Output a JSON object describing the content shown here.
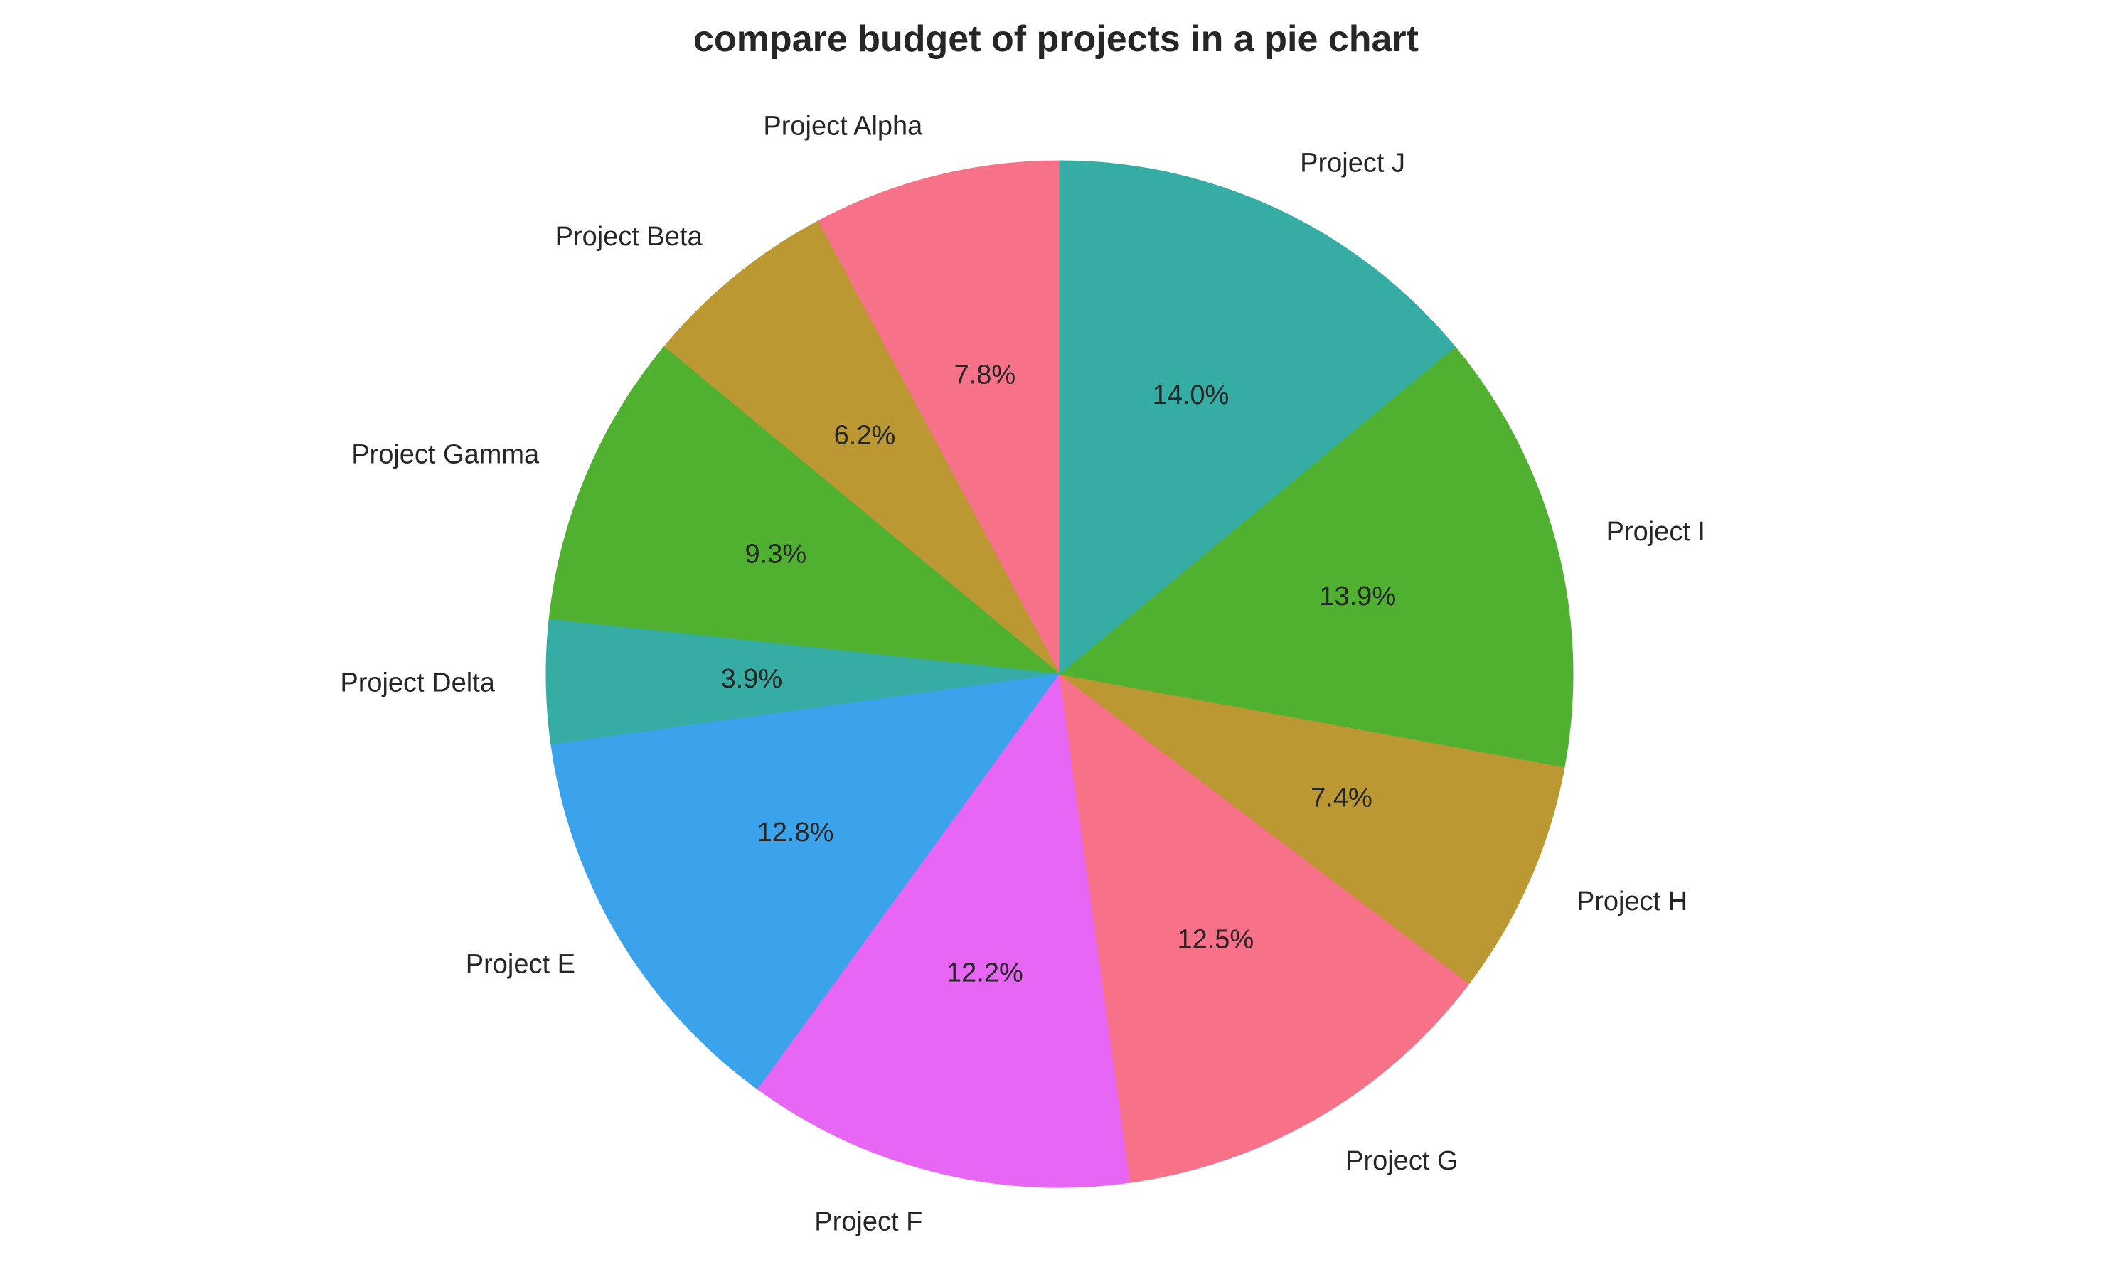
{
  "chart_data": {
    "type": "pie",
    "title": "compare budget of projects in a pie chart",
    "start_angle_deg": 90,
    "direction": "counterclockwise",
    "slices": [
      {
        "label": "Project Alpha",
        "percent": 7.8,
        "percent_label": "7.8%",
        "color": "#f77189"
      },
      {
        "label": "Project Beta",
        "percent": 6.2,
        "percent_label": "6.2%",
        "color": "#bb9832"
      },
      {
        "label": "Project Gamma",
        "percent": 9.3,
        "percent_label": "9.3%",
        "color": "#50b131"
      },
      {
        "label": "Project Delta",
        "percent": 3.9,
        "percent_label": "3.9%",
        "color": "#36ada4"
      },
      {
        "label": "Project E",
        "percent": 12.8,
        "percent_label": "12.8%",
        "color": "#3ba3ec"
      },
      {
        "label": "Project F",
        "percent": 12.2,
        "percent_label": "12.2%",
        "color": "#e866f4"
      },
      {
        "label": "Project G",
        "percent": 12.5,
        "percent_label": "12.5%",
        "color": "#f77189"
      },
      {
        "label": "Project H",
        "percent": 7.4,
        "percent_label": "7.4%",
        "color": "#bb9832"
      },
      {
        "label": "Project I",
        "percent": 13.9,
        "percent_label": "13.9%",
        "color": "#50b131"
      },
      {
        "label": "Project J",
        "percent": 14.0,
        "percent_label": "14.0%",
        "color": "#36ada4"
      }
    ]
  }
}
